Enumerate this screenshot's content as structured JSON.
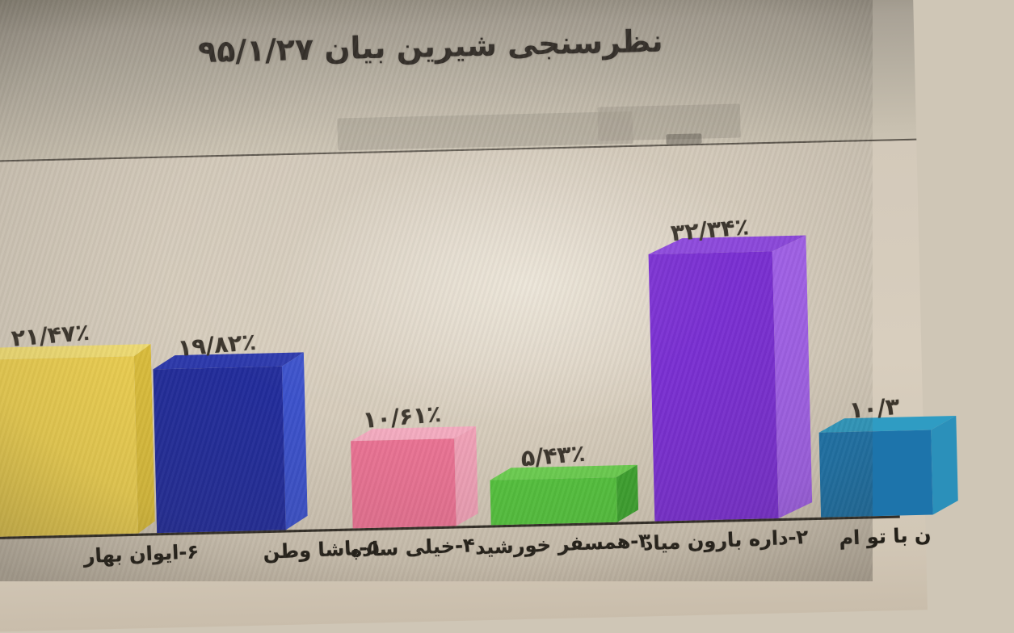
{
  "page": {
    "title": "نظرسنجی شیرین بیان ۹۵/۱/۲۷"
  },
  "chart_data": {
    "type": "bar",
    "style": "3d",
    "direction": "rtl",
    "title": "نظرسنجی شیرین بیان ۹۵/۱/۲۷",
    "xlabel": "",
    "ylabel": "",
    "value_unit": "percent",
    "ylim": [
      0,
      35
    ],
    "grid": false,
    "legend": false,
    "categories": [
      "۶-ایوان بهار",
      "۵-پاشا وطن",
      "۴-خیلی ساده",
      "۳-همسفر خورشید",
      "۲-داره بارون میاد",
      "ن با تو ام"
    ],
    "values": [
      21.47,
      19.82,
      10.61,
      5.43,
      32.34,
      10.3
    ],
    "value_labels": [
      "۲۱/۴۷٪",
      "۱۹/۸۲٪",
      "۱۰/۶۱٪",
      "۵/۴۳٪",
      "۳۲/۳۴٪",
      "۱۰/۳"
    ],
    "bar_colors": {
      "front": [
        "#eed152",
        "#222c9b",
        "#ea7394",
        "#55c33e",
        "#7a2fd2",
        "#1d74ab"
      ],
      "top": [
        "#f3df75",
        "#2c39ac",
        "#f4abc0",
        "#6ccf51",
        "#8c48dc",
        "#2f9cc3"
      ],
      "side": [
        "#ddbf3c",
        "#3c52cb",
        "#f0a1b7",
        "#3da32f",
        "#a161e8",
        "#2b90ba"
      ]
    },
    "colors_meaning": {
      "axis_line": "#332e27",
      "value_text": "#3b352c",
      "category_text": "#231f18",
      "background": "#d8cebe"
    }
  }
}
